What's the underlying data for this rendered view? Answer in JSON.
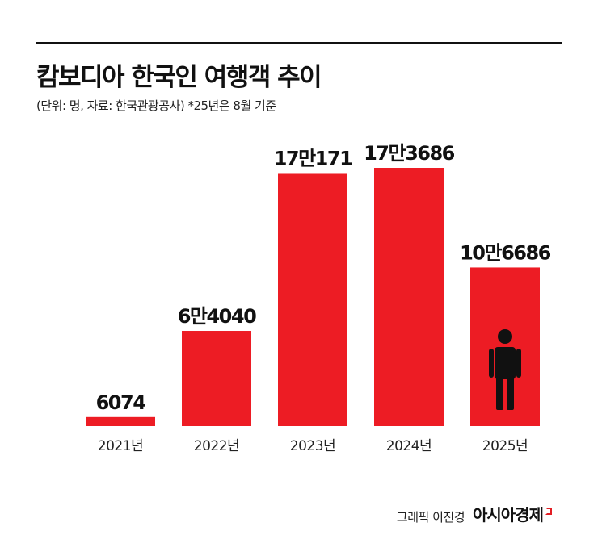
{
  "header": {
    "title": "캄보디아 한국인 여행객 추이",
    "subtitle": "(단위: 명, 자료: 한국관광공사) *25년은 8월 기준"
  },
  "credit": {
    "graphic": "그래픽 이진경",
    "brand": "아시아경제"
  },
  "colors": {
    "bar": "#ed1c24",
    "text": "#111111",
    "icon": "#111111"
  },
  "icons": {
    "highlight": "person-icon"
  },
  "chart_data": {
    "type": "bar",
    "categories": [
      "2021년",
      "2022년",
      "2023년",
      "2024년",
      "2025년"
    ],
    "values": [
      6074,
      64040,
      170171,
      173686,
      106686
    ],
    "data_labels": [
      "6074",
      "6만4040",
      "17만171",
      "17만3686",
      "10만6686"
    ],
    "title": "캄보디아 한국인 여행객 추이",
    "unit": "명",
    "highlight_index": 4,
    "grid": false,
    "legend": false
  }
}
